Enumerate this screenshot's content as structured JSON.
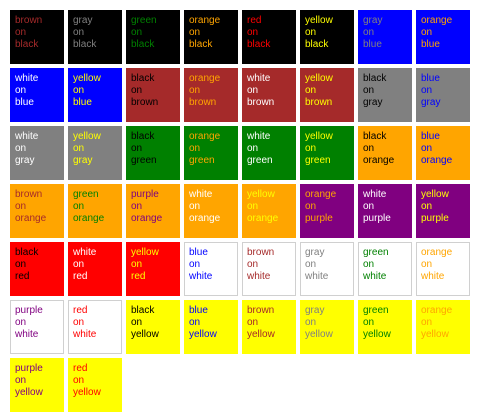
{
  "colors": {
    "black": "#000000",
    "blue": "#0000ff",
    "brown": "#a52a2a",
    "gray": "#808080",
    "green": "#008000",
    "orange": "#ffa500",
    "red": "#ff0000",
    "white": "#ffffff",
    "yellow": "#ffff00",
    "purple": "#800080"
  },
  "connector": "on",
  "swatches": [
    {
      "fg": "brown",
      "bg": "black"
    },
    {
      "fg": "gray",
      "bg": "black"
    },
    {
      "fg": "green",
      "bg": "black"
    },
    {
      "fg": "orange",
      "bg": "black"
    },
    {
      "fg": "red",
      "bg": "black"
    },
    {
      "fg": "yellow",
      "bg": "black"
    },
    {
      "fg": "gray",
      "bg": "blue"
    },
    {
      "fg": "orange",
      "bg": "blue"
    },
    {
      "fg": "white",
      "bg": "blue"
    },
    {
      "fg": "yellow",
      "bg": "blue"
    },
    {
      "fg": "black",
      "bg": "brown"
    },
    {
      "fg": "orange",
      "bg": "brown"
    },
    {
      "fg": "white",
      "bg": "brown"
    },
    {
      "fg": "yellow",
      "bg": "brown"
    },
    {
      "fg": "black",
      "bg": "gray"
    },
    {
      "fg": "blue",
      "bg": "gray"
    },
    {
      "fg": "white",
      "bg": "gray"
    },
    {
      "fg": "yellow",
      "bg": "gray"
    },
    {
      "fg": "black",
      "bg": "green"
    },
    {
      "fg": "orange",
      "bg": "green"
    },
    {
      "fg": "white",
      "bg": "green"
    },
    {
      "fg": "yellow",
      "bg": "green"
    },
    {
      "fg": "black",
      "bg": "orange"
    },
    {
      "fg": "blue",
      "bg": "orange"
    },
    {
      "fg": "brown",
      "bg": "orange"
    },
    {
      "fg": "green",
      "bg": "orange"
    },
    {
      "fg": "purple",
      "bg": "orange"
    },
    {
      "fg": "white",
      "bg": "orange"
    },
    {
      "fg": "yellow",
      "bg": "orange"
    },
    {
      "fg": "orange",
      "bg": "purple"
    },
    {
      "fg": "white",
      "bg": "purple"
    },
    {
      "fg": "yellow",
      "bg": "purple"
    },
    {
      "fg": "black",
      "bg": "red"
    },
    {
      "fg": "white",
      "bg": "red"
    },
    {
      "fg": "yellow",
      "bg": "red"
    },
    {
      "fg": "blue",
      "bg": "white"
    },
    {
      "fg": "brown",
      "bg": "white"
    },
    {
      "fg": "gray",
      "bg": "white"
    },
    {
      "fg": "green",
      "bg": "white"
    },
    {
      "fg": "orange",
      "bg": "white"
    },
    {
      "fg": "purple",
      "bg": "white"
    },
    {
      "fg": "red",
      "bg": "white"
    },
    {
      "fg": "black",
      "bg": "yellow"
    },
    {
      "fg": "blue",
      "bg": "yellow"
    },
    {
      "fg": "brown",
      "bg": "yellow"
    },
    {
      "fg": "gray",
      "bg": "yellow"
    },
    {
      "fg": "green",
      "bg": "yellow"
    },
    {
      "fg": "orange",
      "bg": "yellow"
    },
    {
      "fg": "purple",
      "bg": "yellow"
    },
    {
      "fg": "red",
      "bg": "yellow"
    }
  ]
}
